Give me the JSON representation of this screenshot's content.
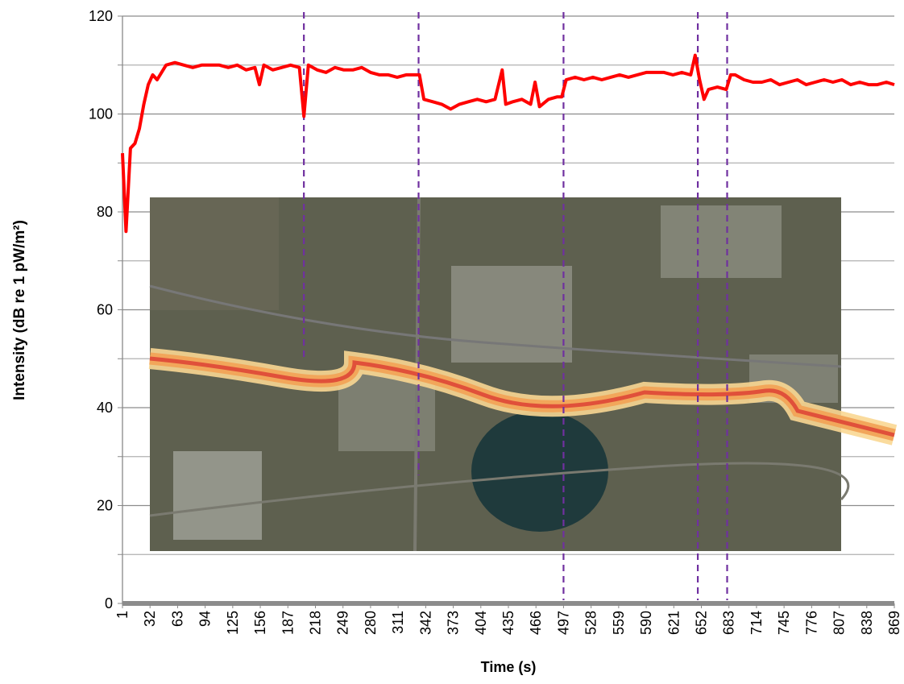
{
  "chart_data": {
    "type": "line",
    "y_label": "Intensity (dB re 1 pW/m²)",
    "x_label": "Time (s)",
    "xlim": [
      1,
      869
    ],
    "xticks": [
      1,
      32,
      63,
      94,
      125,
      156,
      187,
      218,
      249,
      280,
      311,
      342,
      373,
      404,
      435,
      466,
      497,
      528,
      559,
      590,
      621,
      652,
      683,
      714,
      745,
      776,
      807,
      838,
      869
    ],
    "ylim": [
      0,
      120
    ],
    "yticks": [
      0,
      20,
      40,
      60,
      80,
      100,
      120
    ],
    "minor_yticks": [
      10,
      30,
      50,
      70,
      90,
      110
    ],
    "grid": true,
    "event_markers": [
      205,
      334,
      497,
      648,
      681
    ],
    "event_marker_color": "#7030a0",
    "series": [
      {
        "color": "#ff0000",
        "x": [
          1,
          5,
          10,
          15,
          20,
          25,
          30,
          35,
          40,
          50,
          60,
          70,
          80,
          90,
          100,
          110,
          120,
          130,
          140,
          150,
          155,
          160,
          170,
          180,
          190,
          200,
          205,
          210,
          220,
          230,
          240,
          250,
          260,
          270,
          280,
          290,
          300,
          310,
          320,
          330,
          335,
          340,
          350,
          360,
          370,
          380,
          390,
          400,
          410,
          420,
          428,
          432,
          440,
          450,
          460,
          465,
          470,
          480,
          490,
          495,
          500,
          510,
          520,
          530,
          540,
          550,
          560,
          570,
          580,
          590,
          600,
          610,
          620,
          630,
          640,
          645,
          650,
          655,
          660,
          670,
          680,
          685,
          690,
          700,
          710,
          720,
          730,
          740,
          750,
          760,
          770,
          780,
          790,
          800,
          810,
          820,
          830,
          840,
          850,
          860,
          869
        ],
        "values": [
          92,
          76,
          93,
          94,
          97,
          102,
          106,
          108,
          107,
          110,
          110.5,
          110,
          109.5,
          110,
          110,
          110,
          109.5,
          110,
          109,
          109.5,
          106,
          110,
          109,
          109.5,
          110,
          109.5,
          99.5,
          110,
          109,
          108.5,
          109.5,
          109,
          109,
          109.5,
          108.5,
          108,
          108,
          107.5,
          108,
          108,
          108,
          103,
          102.5,
          102,
          101,
          102,
          102.5,
          103,
          102.5,
          103,
          109,
          102,
          102.5,
          103,
          102,
          106.5,
          101.5,
          103,
          103.5,
          103.5,
          107,
          107.5,
          107,
          107.5,
          107,
          107.5,
          108,
          107.5,
          108,
          108.5,
          108.5,
          108.5,
          108,
          108.5,
          108,
          112,
          107,
          103,
          105,
          105.5,
          105,
          108,
          108,
          107,
          106.5,
          106.5,
          107,
          106,
          106.5,
          107,
          106,
          106.5,
          107,
          106.5,
          107,
          106,
          106.5,
          106,
          106,
          106.5,
          106
        ]
      }
    ]
  }
}
